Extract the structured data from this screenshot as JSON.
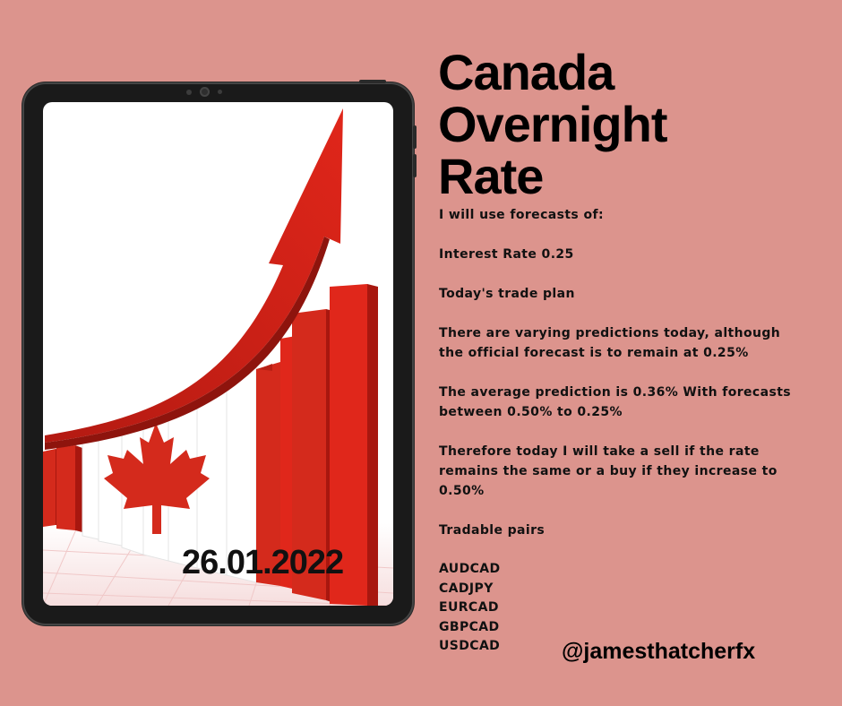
{
  "title_lines": [
    "Canada",
    "Overnight",
    "Rate"
  ],
  "date": "26.01.2022",
  "intro": "I will use forecasts of:",
  "interest_rate": "Interest Rate  0.25",
  "plan_heading": "Today's trade plan",
  "prediction_text": "There are varying predictions today, although the official forecast is to remain at 0.25%",
  "average_text": "The average prediction is 0.36% With forecasts between 0.50% to 0.25%",
  "plan_text": "Therefore today I will take a sell if the rate remains the same or a buy if they increase to 0.50%",
  "pairs_heading": "Tradable pairs",
  "pairs": [
    "AUDCAD",
    "CADJPY",
    "EURCAD",
    "GBPCAD",
    "USDCAD"
  ],
  "handle": "@jamesthatcherfx",
  "colors": {
    "background": "#dc948d",
    "red": "#d42a1c",
    "tablet": "#1a1a1a"
  },
  "image_icon": "canada-flag-bar-chart-arrow"
}
